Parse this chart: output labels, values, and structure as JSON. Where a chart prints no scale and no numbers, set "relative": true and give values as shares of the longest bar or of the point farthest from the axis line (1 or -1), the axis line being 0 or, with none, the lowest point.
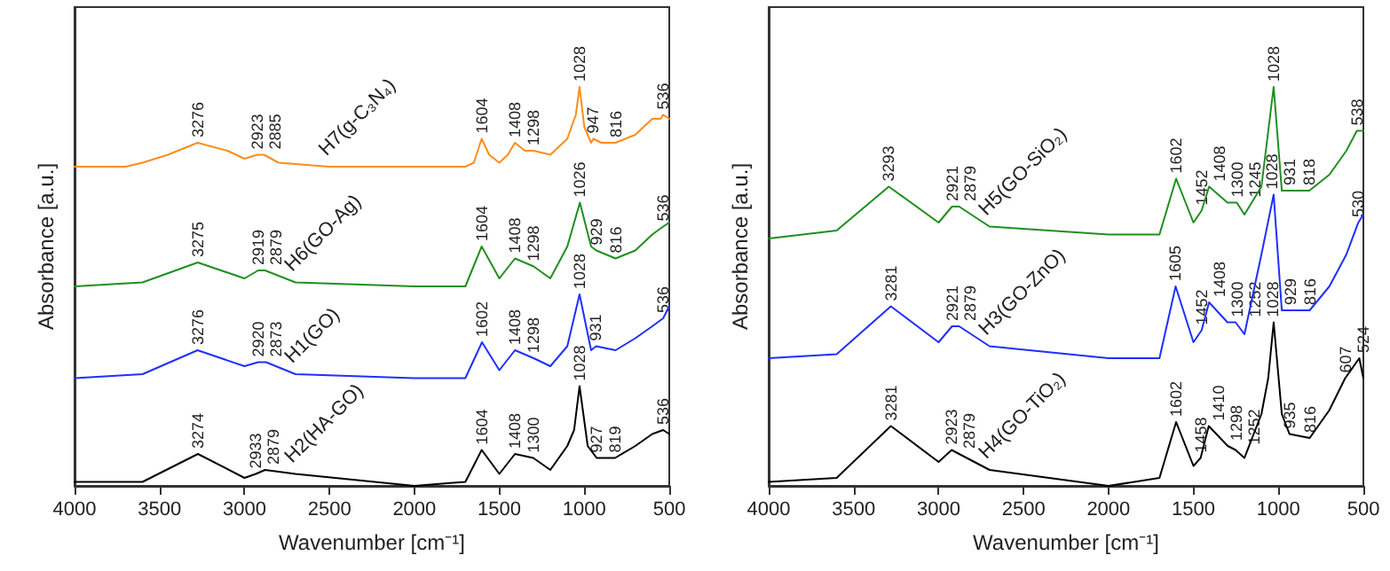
{
  "chart_data": [
    {
      "type": "line",
      "relative": true,
      "xlabel": "Wavenumber [cm⁻¹]",
      "ylabel": "Absorbance [a.u.]",
      "xlim": [
        4000,
        500
      ],
      "xticks": [
        4000,
        3500,
        3000,
        2500,
        2000,
        1500,
        1000,
        500
      ],
      "grid": false,
      "legend": false,
      "tick_labels": "x",
      "marker": "none",
      "line_style": "solid",
      "series": [
        {
          "name": "H7(g-C₃N₄)",
          "color": "#ff8c1a",
          "x": [
            4000,
            3700,
            3600,
            3450,
            3276,
            3100,
            3000,
            2923,
            2885,
            2800,
            2500,
            2000,
            1700,
            1650,
            1604,
            1560,
            1500,
            1450,
            1408,
            1350,
            1298,
            1200,
            1100,
            1050,
            1028,
            1000,
            960,
            947,
            900,
            816,
            700,
            600,
            550,
            536,
            500
          ],
          "values": [
            0.8,
            0.8,
            0.81,
            0.83,
            0.86,
            0.84,
            0.82,
            0.83,
            0.83,
            0.81,
            0.8,
            0.8,
            0.8,
            0.81,
            0.87,
            0.83,
            0.81,
            0.83,
            0.86,
            0.84,
            0.84,
            0.83,
            0.87,
            0.93,
            1.0,
            0.9,
            0.86,
            0.87,
            0.86,
            0.86,
            0.88,
            0.92,
            0.92,
            0.93,
            0.92
          ]
        },
        {
          "name": "H6(GO-Ag)",
          "color": "#1f8f1f",
          "x": [
            4000,
            3600,
            3275,
            3000,
            2919,
            2879,
            2700,
            2000,
            1700,
            1604,
            1500,
            1408,
            1298,
            1200,
            1100,
            1026,
            960,
            929,
            816,
            700,
            600,
            536,
            500
          ],
          "values": [
            0.5,
            0.51,
            0.56,
            0.52,
            0.54,
            0.54,
            0.51,
            0.5,
            0.5,
            0.6,
            0.52,
            0.57,
            0.55,
            0.52,
            0.6,
            0.71,
            0.6,
            0.59,
            0.57,
            0.59,
            0.63,
            0.65,
            0.66
          ]
        },
        {
          "name": "H1(GO)",
          "color": "#1f2fff",
          "x": [
            4000,
            3600,
            3276,
            3000,
            2920,
            2873,
            2700,
            2000,
            1700,
            1602,
            1500,
            1408,
            1298,
            1200,
            1100,
            1028,
            960,
            931,
            816,
            700,
            600,
            536,
            500
          ],
          "values": [
            0.27,
            0.28,
            0.34,
            0.3,
            0.31,
            0.31,
            0.28,
            0.27,
            0.27,
            0.36,
            0.29,
            0.34,
            0.32,
            0.3,
            0.35,
            0.48,
            0.34,
            0.35,
            0.34,
            0.37,
            0.4,
            0.42,
            0.45
          ]
        },
        {
          "name": "H2(HA-GO)",
          "color": "#000000",
          "x": [
            4000,
            3600,
            3274,
            3000,
            2933,
            2879,
            2700,
            2000,
            1700,
            1604,
            1500,
            1408,
            1300,
            1200,
            1100,
            1060,
            1028,
            980,
            927,
            819,
            700,
            600,
            536,
            500
          ],
          "values": [
            0.01,
            0.01,
            0.08,
            0.02,
            0.03,
            0.04,
            0.03,
            0.0,
            0.01,
            0.09,
            0.03,
            0.08,
            0.07,
            0.04,
            0.1,
            0.14,
            0.25,
            0.1,
            0.07,
            0.07,
            0.1,
            0.13,
            0.14,
            0.13
          ]
        }
      ],
      "annotations": [
        {
          "text": "3276",
          "x": 3276,
          "y": 0.86
        },
        {
          "text": "2923",
          "x": 2923,
          "y": 0.83
        },
        {
          "text": "2885",
          "x": 2885,
          "y": 0.83
        },
        {
          "text": "1604",
          "x": 1604,
          "y": 0.87
        },
        {
          "text": "1408",
          "x": 1408,
          "y": 0.86
        },
        {
          "text": "1298",
          "x": 1298,
          "y": 0.84
        },
        {
          "text": "1028",
          "x": 1028,
          "y": 1.0
        },
        {
          "text": "947",
          "x": 947,
          "y": 0.87
        },
        {
          "text": "816",
          "x": 816,
          "y": 0.86
        },
        {
          "text": "536",
          "x": 536,
          "y": 0.93
        },
        {
          "text": "3275",
          "x": 3275,
          "y": 0.56
        },
        {
          "text": "2919",
          "x": 2919,
          "y": 0.54
        },
        {
          "text": "2879",
          "x": 2879,
          "y": 0.54
        },
        {
          "text": "1604",
          "x": 1604,
          "y": 0.6
        },
        {
          "text": "1408",
          "x": 1408,
          "y": 0.57
        },
        {
          "text": "1298",
          "x": 1298,
          "y": 0.55
        },
        {
          "text": "1026",
          "x": 1026,
          "y": 0.71
        },
        {
          "text": "929",
          "x": 929,
          "y": 0.59
        },
        {
          "text": "816",
          "x": 816,
          "y": 0.57
        },
        {
          "text": "536",
          "x": 536,
          "y": 0.65
        },
        {
          "text": "3276",
          "x": 3276,
          "y": 0.34
        },
        {
          "text": "2920",
          "x": 2920,
          "y": 0.31
        },
        {
          "text": "2873",
          "x": 2873,
          "y": 0.31
        },
        {
          "text": "1602",
          "x": 1602,
          "y": 0.36
        },
        {
          "text": "1408",
          "x": 1408,
          "y": 0.34
        },
        {
          "text": "1298",
          "x": 1298,
          "y": 0.32
        },
        {
          "text": "1028",
          "x": 1028,
          "y": 0.48
        },
        {
          "text": "931",
          "x": 931,
          "y": 0.35
        },
        {
          "text": "536",
          "x": 536,
          "y": 0.42
        },
        {
          "text": "3274",
          "x": 3274,
          "y": 0.08
        },
        {
          "text": "2933",
          "x": 2933,
          "y": 0.03
        },
        {
          "text": "2879",
          "x": 2879,
          "y": 0.04
        },
        {
          "text": "1604",
          "x": 1604,
          "y": 0.09
        },
        {
          "text": "1408",
          "x": 1408,
          "y": 0.08
        },
        {
          "text": "1300",
          "x": 1300,
          "y": 0.07
        },
        {
          "text": "1028",
          "x": 1028,
          "y": 0.25
        },
        {
          "text": "927",
          "x": 927,
          "y": 0.07
        },
        {
          "text": "819",
          "x": 819,
          "y": 0.07
        },
        {
          "text": "536",
          "x": 536,
          "y": 0.14
        }
      ]
    },
    {
      "type": "line",
      "relative": true,
      "xlabel": "Wavenumber [cm⁻¹]",
      "ylabel": "Absorbance [a.u.]",
      "xlim": [
        4000,
        500
      ],
      "xticks": [
        4000,
        3500,
        3000,
        2500,
        2000,
        1500,
        1000,
        500
      ],
      "grid": false,
      "legend": false,
      "tick_labels": "x",
      "marker": "none",
      "line_style": "solid",
      "series": [
        {
          "name": "H5(GO-SiO₂)",
          "color": "#1f8f1f",
          "x": [
            4000,
            3600,
            3293,
            3000,
            2921,
            2879,
            2700,
            2000,
            1700,
            1602,
            1500,
            1452,
            1408,
            1300,
            1245,
            1200,
            1100,
            1028,
            980,
            931,
            818,
            700,
            600,
            538,
            500
          ],
          "values": [
            0.62,
            0.64,
            0.75,
            0.66,
            0.7,
            0.7,
            0.65,
            0.63,
            0.63,
            0.77,
            0.66,
            0.69,
            0.75,
            0.71,
            0.71,
            0.68,
            0.75,
            1.0,
            0.74,
            0.74,
            0.74,
            0.78,
            0.84,
            0.89,
            0.89
          ]
        },
        {
          "name": "H3(GO-ZnO)",
          "color": "#1f2fff",
          "x": [
            4000,
            3600,
            3281,
            3000,
            2921,
            2879,
            2700,
            2000,
            1700,
            1605,
            1500,
            1452,
            1408,
            1300,
            1252,
            1200,
            1100,
            1028,
            980,
            929,
            816,
            700,
            600,
            530,
            500
          ],
          "values": [
            0.32,
            0.33,
            0.45,
            0.36,
            0.4,
            0.4,
            0.35,
            0.32,
            0.32,
            0.5,
            0.36,
            0.39,
            0.46,
            0.41,
            0.41,
            0.38,
            0.58,
            0.73,
            0.44,
            0.44,
            0.44,
            0.5,
            0.58,
            0.66,
            0.68
          ]
        },
        {
          "name": "H4(GO-TiO₂)",
          "color": "#000000",
          "x": [
            4000,
            3600,
            3281,
            3000,
            2923,
            2879,
            2700,
            2000,
            1700,
            1602,
            1500,
            1458,
            1410,
            1298,
            1252,
            1200,
            1100,
            1060,
            1028,
            980,
            935,
            816,
            700,
            607,
            524,
            500
          ],
          "values": [
            0.01,
            0.02,
            0.15,
            0.06,
            0.09,
            0.08,
            0.04,
            0.0,
            0.02,
            0.16,
            0.05,
            0.07,
            0.15,
            0.1,
            0.09,
            0.07,
            0.18,
            0.27,
            0.41,
            0.18,
            0.13,
            0.12,
            0.19,
            0.27,
            0.32,
            0.27
          ]
        }
      ],
      "annotations": [
        {
          "text": "3293",
          "x": 3293,
          "y": 0.75
        },
        {
          "text": "2921",
          "x": 2921,
          "y": 0.7
        },
        {
          "text": "2879",
          "x": 2879,
          "y": 0.7
        },
        {
          "text": "1602",
          "x": 1602,
          "y": 0.77
        },
        {
          "text": "1452",
          "x": 1452,
          "y": 0.69
        },
        {
          "text": "1408",
          "x": 1408,
          "y": 0.75
        },
        {
          "text": "1300",
          "x": 1300,
          "y": 0.71
        },
        {
          "text": "1245",
          "x": 1245,
          "y": 0.71
        },
        {
          "text": "1028",
          "x": 1028,
          "y": 1.0
        },
        {
          "text": "931",
          "x": 931,
          "y": 0.74
        },
        {
          "text": "818",
          "x": 818,
          "y": 0.74
        },
        {
          "text": "538",
          "x": 538,
          "y": 0.89
        },
        {
          "text": "3281",
          "x": 3281,
          "y": 0.45
        },
        {
          "text": "2921",
          "x": 2921,
          "y": 0.4
        },
        {
          "text": "2879",
          "x": 2879,
          "y": 0.4
        },
        {
          "text": "1605",
          "x": 1605,
          "y": 0.5
        },
        {
          "text": "1452",
          "x": 1452,
          "y": 0.39
        },
        {
          "text": "1408",
          "x": 1408,
          "y": 0.46
        },
        {
          "text": "1300",
          "x": 1300,
          "y": 0.41
        },
        {
          "text": "1252",
          "x": 1252,
          "y": 0.41
        },
        {
          "text": "1028",
          "x": 1028,
          "y": 0.73
        },
        {
          "text": "929",
          "x": 929,
          "y": 0.44
        },
        {
          "text": "816",
          "x": 816,
          "y": 0.44
        },
        {
          "text": "530",
          "x": 530,
          "y": 0.66
        },
        {
          "text": "3281",
          "x": 3281,
          "y": 0.15
        },
        {
          "text": "2923",
          "x": 2923,
          "y": 0.09
        },
        {
          "text": "2879",
          "x": 2879,
          "y": 0.08
        },
        {
          "text": "1602",
          "x": 1602,
          "y": 0.16
        },
        {
          "text": "1458",
          "x": 1458,
          "y": 0.07
        },
        {
          "text": "1410",
          "x": 1410,
          "y": 0.15
        },
        {
          "text": "1298",
          "x": 1298,
          "y": 0.1
        },
        {
          "text": "1252",
          "x": 1252,
          "y": 0.09
        },
        {
          "text": "1028",
          "x": 1028,
          "y": 0.41
        },
        {
          "text": "935",
          "x": 935,
          "y": 0.13
        },
        {
          "text": "816",
          "x": 816,
          "y": 0.12
        },
        {
          "text": "607",
          "x": 607,
          "y": 0.27
        },
        {
          "text": "524",
          "x": 524,
          "y": 0.32
        }
      ]
    }
  ]
}
